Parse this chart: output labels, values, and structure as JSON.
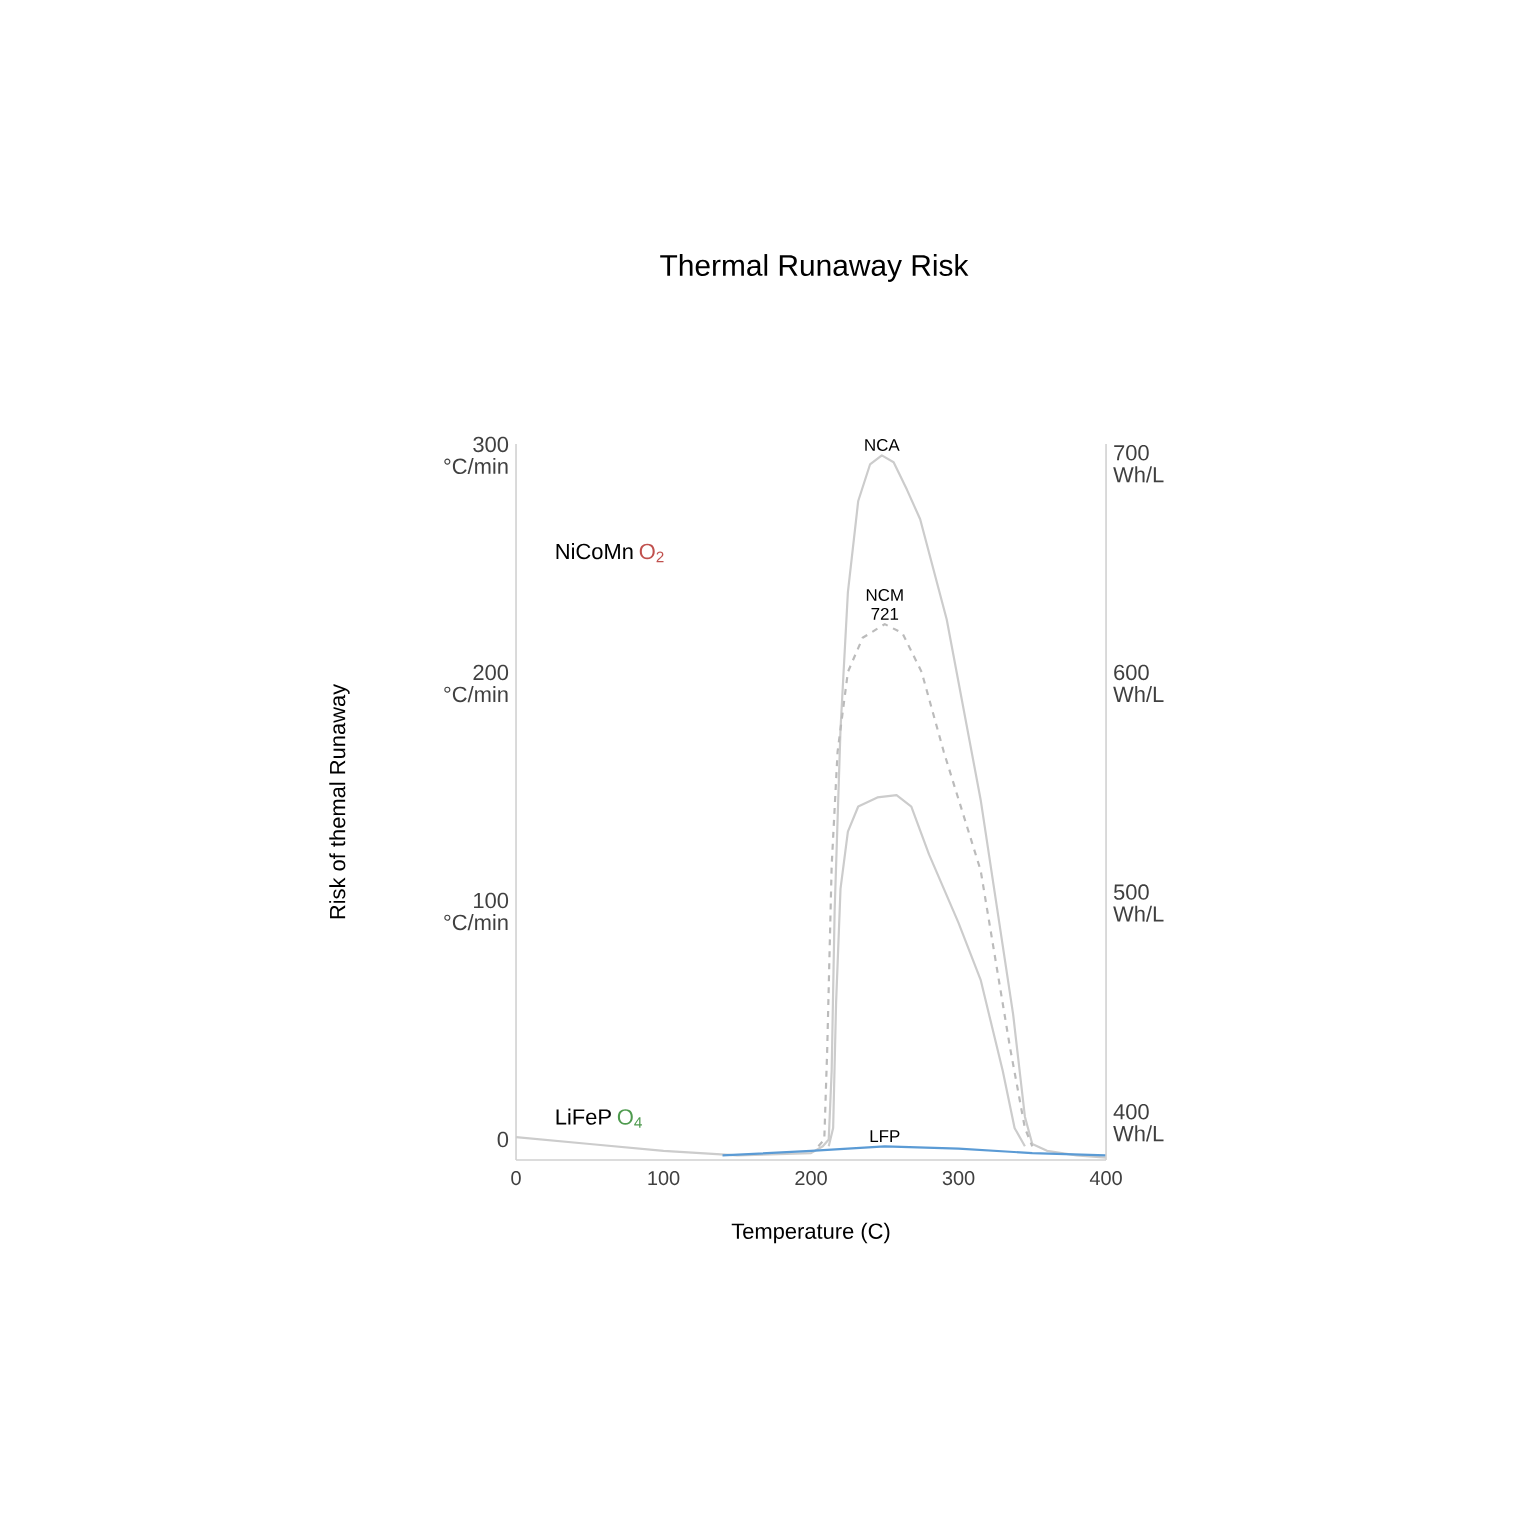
{
  "chart_data": {
    "type": "line",
    "title": "Thermal Runaway Risk",
    "xlabel": "Temperature (C)",
    "ylabel": "Risk of themal Runaway",
    "xlim": [
      0,
      400
    ],
    "xticks": [
      0,
      100,
      200,
      300,
      400
    ],
    "ylim": [
      -9,
      305
    ],
    "yticks": [
      0,
      {
        "value": 100,
        "label": "100 °C/min"
      },
      {
        "value": 200,
        "label": "200 °C/min"
      },
      {
        "value": 300,
        "label": "300 °C/min"
      }
    ],
    "y2lim": [
      383,
      709
    ],
    "y2ticks": [
      {
        "value": 400,
        "label": "400 Wh/L"
      },
      {
        "value": 500,
        "label": "500 Wh/L"
      },
      {
        "value": 600,
        "label": "600 Wh/L"
      },
      {
        "value": 700,
        "label": "700 Wh/L"
      }
    ],
    "grid": false,
    "legend": false,
    "marker": "none",
    "annotations": [
      "NiCoMn",
      "O$_{2}$",
      "LiFeP",
      "O$_{4}$"
    ],
    "series": [
      {
        "name": "NCA",
        "color": "#cccccc",
        "line_style": "solid",
        "x": [
          0,
          50,
          100,
          150,
          200,
          208,
          212,
          214,
          216,
          220,
          225,
          232,
          240,
          248,
          256,
          265,
          274,
          292,
          315,
          337,
          345,
          350,
          360,
          380,
          400
        ],
        "values": [
          1,
          -2,
          -5,
          -7,
          -6,
          -3,
          0,
          30,
          100,
          180,
          240,
          280,
          296,
          300,
          297,
          285,
          272,
          228,
          149,
          55,
          10,
          -2,
          -5,
          -7,
          -8
        ]
      },
      {
        "name": "NCM 721",
        "color": "#bbbbbb",
        "line_style": "dashed",
        "x": [
          205,
          209,
          211,
          214,
          218,
          225,
          235,
          250,
          262,
          275,
          290,
          315,
          335,
          345,
          350
        ],
        "values": [
          -3,
          0,
          40,
          120,
          170,
          205,
          220,
          226,
          222,
          205,
          170,
          118,
          40,
          5,
          -3
        ]
      },
      {
        "color": "#cccccc",
        "line_style": "solid",
        "x": [
          212,
          215,
          217,
          220,
          225,
          232,
          245,
          258,
          268,
          280,
          300,
          315,
          330,
          338,
          345
        ],
        "values": [
          -3,
          5,
          60,
          110,
          135,
          146,
          150,
          151,
          146,
          125,
          95,
          70,
          30,
          5,
          -3
        ]
      },
      {
        "name": "LFP",
        "color": "#5b9bd5",
        "line_style": "solid",
        "x": [
          140,
          200,
          250,
          300,
          350,
          400
        ],
        "values": [
          -7,
          -5,
          -3,
          -4,
          -6,
          -7
        ]
      }
    ]
  }
}
